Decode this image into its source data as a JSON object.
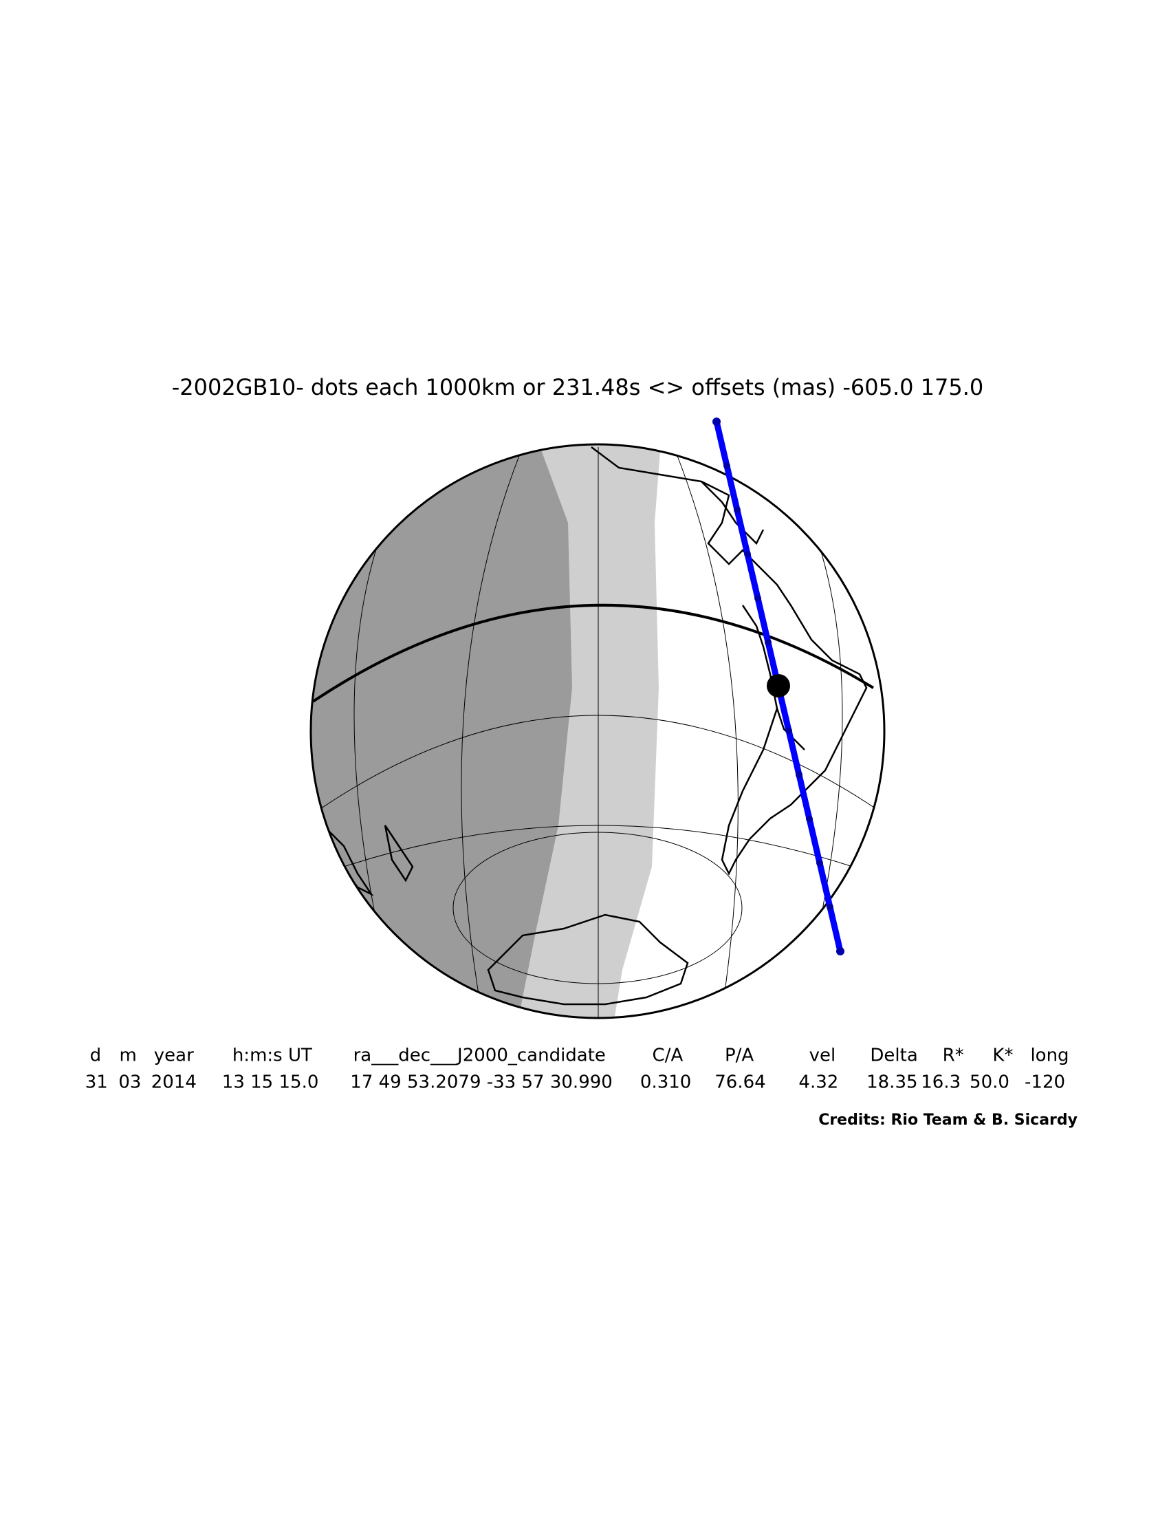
{
  "title": "-2002GB10- dots each 1000km or 231.48s <> offsets (mas) -605.0  175.0",
  "table": {
    "headers": [
      "d",
      "m",
      "year",
      "h:m:s UT",
      "ra___dec___J2000_candidate",
      "C/A",
      "P/A",
      "vel",
      "Delta",
      "R*",
      "K*",
      "long"
    ],
    "values": [
      "31",
      "03",
      "2014",
      "13 15 15.0",
      "17 49 53.2079 -33 57 30.990",
      "0.310",
      "76.64",
      "4.32",
      "18.35",
      "16.3",
      "50.0",
      "-120"
    ]
  },
  "credits": "Credits: Rio Team & B. Sicardy"
}
